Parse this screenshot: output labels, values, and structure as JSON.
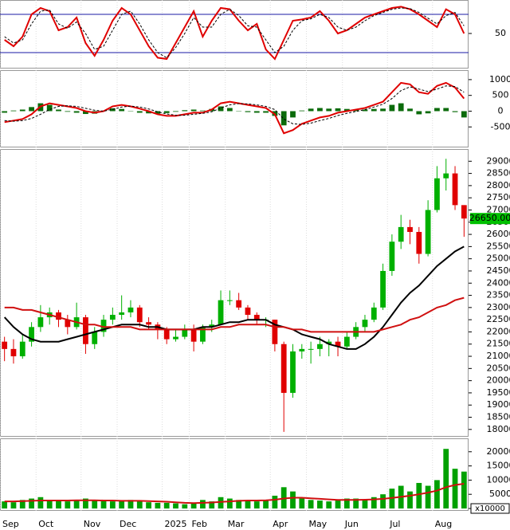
{
  "chart_data": [
    {
      "type": "line",
      "ylim": [
        0,
        100
      ],
      "yticks": [
        50
      ],
      "hlines": [
        20,
        80
      ],
      "hline_color": "#1a1aa6",
      "series": [
        {
          "name": "%K",
          "color": "#e00000",
          "values": [
            40,
            30,
            45,
            80,
            90,
            85,
            55,
            60,
            75,
            35,
            15,
            40,
            70,
            90,
            80,
            55,
            30,
            12,
            10,
            35,
            60,
            85,
            45,
            70,
            90,
            88,
            70,
            55,
            65,
            25,
            10,
            40,
            70,
            72,
            75,
            85,
            70,
            50,
            55,
            65,
            75,
            80,
            85,
            90,
            92,
            88,
            80,
            70,
            60,
            88,
            80,
            50
          ]
        },
        {
          "name": "%D",
          "color": "#000000",
          "dash": true,
          "values": [
            45,
            35,
            40,
            65,
            85,
            87,
            65,
            58,
            68,
            50,
            25,
            30,
            55,
            80,
            85,
            65,
            40,
            20,
            12,
            28,
            50,
            75,
            60,
            60,
            80,
            88,
            78,
            62,
            60,
            40,
            20,
            30,
            55,
            70,
            73,
            80,
            75,
            60,
            55,
            60,
            70,
            78,
            83,
            88,
            90,
            89,
            83,
            74,
            65,
            78,
            83,
            62
          ]
        }
      ]
    },
    {
      "type": "line",
      "ylim": [
        -1100,
        1250
      ],
      "yticks": [
        -500,
        0,
        500,
        1000
      ],
      "series": [
        {
          "name": "Histogram",
          "kind": "bar",
          "color": "#0b6b0b",
          "values": [
            -50,
            20,
            50,
            130,
            250,
            200,
            50,
            -20,
            -50,
            -90,
            -80,
            0,
            90,
            70,
            -10,
            -50,
            -70,
            -80,
            -60,
            -20,
            30,
            50,
            20,
            70,
            150,
            100,
            10,
            -30,
            -50,
            -50,
            -150,
            -450,
            -200,
            20,
            80,
            100,
            80,
            90,
            70,
            60,
            50,
            70,
            80,
            200,
            250,
            80,
            -100,
            -70,
            100,
            100,
            -30,
            -200
          ]
        },
        {
          "name": "MACD",
          "color": "#e00000",
          "values": [
            -350,
            -300,
            -250,
            -100,
            150,
            250,
            200,
            150,
            100,
            0,
            -50,
            0,
            150,
            200,
            150,
            80,
            0,
            -100,
            -150,
            -150,
            -100,
            -50,
            -50,
            50,
            250,
            300,
            250,
            200,
            150,
            100,
            -100,
            -700,
            -600,
            -400,
            -300,
            -200,
            -150,
            -50,
            0,
            50,
            100,
            200,
            300,
            600,
            900,
            850,
            600,
            550,
            800,
            900,
            750,
            400
          ]
        },
        {
          "name": "Signal",
          "color": "#000000",
          "dash": true,
          "values": [
            -300,
            -320,
            -300,
            -230,
            -100,
            50,
            150,
            170,
            150,
            90,
            30,
            0,
            60,
            130,
            160,
            130,
            70,
            -20,
            -90,
            -130,
            -130,
            -100,
            -70,
            -20,
            100,
            200,
            240,
            230,
            200,
            150,
            50,
            -250,
            -400,
            -420,
            -380,
            -300,
            -230,
            -140,
            -70,
            -10,
            50,
            130,
            220,
            400,
            650,
            770,
            700,
            620,
            700,
            800,
            780,
            600
          ]
        }
      ]
    },
    {
      "type": "candlestick",
      "ylim": [
        17700,
        29500
      ],
      "yticks": [
        18000,
        18500,
        19000,
        19500,
        20000,
        20500,
        21000,
        21500,
        22000,
        22500,
        23000,
        23500,
        24000,
        24500,
        25000,
        25500,
        26000,
        26500,
        27000,
        27500,
        28000,
        28500,
        29000
      ],
      "up_color": "#00b000",
      "down_color": "#e00000",
      "last_price": {
        "value": 26650,
        "label": "26650.00"
      },
      "last_price_color": "#00c000",
      "candles": [
        [
          21600,
          21800,
          20800,
          21300
        ],
        [
          21300,
          21700,
          20700,
          21000
        ],
        [
          21000,
          21900,
          20900,
          21600
        ],
        [
          21600,
          22400,
          21400,
          22200
        ],
        [
          22200,
          23100,
          22000,
          22600
        ],
        [
          22600,
          23000,
          22300,
          22800
        ],
        [
          22800,
          22900,
          22200,
          22500
        ],
        [
          22500,
          22700,
          21900,
          22200
        ],
        [
          22200,
          23200,
          22100,
          22600
        ],
        [
          22600,
          22700,
          21100,
          21500
        ],
        [
          21500,
          22200,
          21300,
          22000
        ],
        [
          22000,
          22700,
          21800,
          22500
        ],
        [
          22500,
          23000,
          22300,
          22700
        ],
        [
          22700,
          23500,
          22500,
          22800
        ],
        [
          22800,
          23300,
          22600,
          23000
        ],
        [
          23000,
          23100,
          22200,
          22400
        ],
        [
          22400,
          22600,
          22100,
          22300
        ],
        [
          22300,
          22400,
          21700,
          22100
        ],
        [
          22100,
          22200,
          21500,
          21700
        ],
        [
          21700,
          22100,
          21600,
          21800
        ],
        [
          21800,
          22300,
          21700,
          22100
        ],
        [
          22100,
          22300,
          21200,
          21600
        ],
        [
          21600,
          22300,
          21500,
          22200
        ],
        [
          22200,
          22500,
          22000,
          22300
        ],
        [
          22300,
          23700,
          22300,
          23300
        ],
        [
          23300,
          23700,
          23100,
          23300
        ],
        [
          23300,
          23600,
          22900,
          23000
        ],
        [
          23000,
          23100,
          22500,
          22700
        ],
        [
          22700,
          22800,
          22300,
          22500
        ],
        [
          22500,
          22600,
          22200,
          22500
        ],
        [
          22500,
          22500,
          21200,
          21500
        ],
        [
          21500,
          21600,
          17900,
          19500
        ],
        [
          19500,
          21500,
          19300,
          21200
        ],
        [
          21200,
          21500,
          20900,
          21300
        ],
        [
          21300,
          21600,
          20700,
          21300
        ],
        [
          21300,
          21800,
          21000,
          21500
        ],
        [
          21500,
          21700,
          21000,
          21600
        ],
        [
          21600,
          21800,
          21000,
          21400
        ],
        [
          21400,
          22000,
          21300,
          21800
        ],
        [
          21800,
          22400,
          21700,
          22200
        ],
        [
          22200,
          22700,
          22000,
          22500
        ],
        [
          22500,
          23200,
          22400,
          23000
        ],
        [
          23000,
          24800,
          22900,
          24500
        ],
        [
          24500,
          26000,
          24300,
          25700
        ],
        [
          25700,
          26800,
          25400,
          26300
        ],
        [
          26300,
          26600,
          25600,
          26100
        ],
        [
          26100,
          26300,
          24800,
          25200
        ],
        [
          25200,
          27400,
          25100,
          27000
        ],
        [
          27000,
          28800,
          26900,
          28300
        ],
        [
          28300,
          29100,
          27800,
          28500
        ],
        [
          28500,
          28800,
          27000,
          27200
        ],
        [
          27200,
          27200,
          25900,
          26650
        ]
      ],
      "series": [
        {
          "name": "MA50",
          "color": "#000000",
          "values": [
            22600,
            22200,
            21900,
            21700,
            21600,
            21600,
            21600,
            21700,
            21800,
            21900,
            22000,
            22100,
            22200,
            22300,
            22300,
            22300,
            22200,
            22200,
            22100,
            22100,
            22100,
            22100,
            22200,
            22200,
            22300,
            22400,
            22400,
            22500,
            22500,
            22500,
            22300,
            22200,
            22100,
            21900,
            21800,
            21700,
            21500,
            21400,
            21300,
            21300,
            21500,
            21800,
            22200,
            22700,
            23200,
            23600,
            23900,
            24300,
            24700,
            25000,
            25300,
            25500
          ]
        },
        {
          "name": "MA200",
          "color": "#d01010",
          "values": [
            23000,
            23000,
            22900,
            22900,
            22800,
            22700,
            22600,
            22500,
            22400,
            22300,
            22300,
            22200,
            22200,
            22200,
            22200,
            22100,
            22100,
            22100,
            22100,
            22100,
            22100,
            22100,
            22100,
            22100,
            22200,
            22200,
            22300,
            22300,
            22300,
            22300,
            22200,
            22200,
            22100,
            22100,
            22000,
            22000,
            22000,
            22000,
            22000,
            22000,
            22000,
            22000,
            22100,
            22200,
            22300,
            22500,
            22600,
            22800,
            23000,
            23100,
            23300,
            23400
          ]
        }
      ]
    },
    {
      "type": "bar",
      "ylim": [
        0,
        25000
      ],
      "yticks": [
        0,
        5000,
        10000,
        15000,
        20000
      ],
      "y_unit": "x10000",
      "categories": [
        "Sep",
        null,
        null,
        null,
        "Oct",
        null,
        null,
        null,
        null,
        "Nov",
        null,
        null,
        null,
        "Dec",
        null,
        null,
        null,
        null,
        "2025",
        null,
        null,
        "Feb",
        null,
        null,
        null,
        "Mar",
        null,
        null,
        null,
        null,
        "Apr",
        null,
        null,
        null,
        "May",
        null,
        null,
        null,
        "Jun",
        null,
        null,
        null,
        null,
        "Jul",
        null,
        null,
        null,
        null,
        "Aug",
        null,
        null,
        null
      ],
      "series": [
        {
          "name": "Volume",
          "kind": "bar",
          "color": "#00a000",
          "values": [
            2500,
            2200,
            3000,
            3500,
            4000,
            3000,
            2800,
            2500,
            3000,
            3500,
            2800,
            2600,
            2500,
            2800,
            3000,
            2500,
            2200,
            2000,
            2000,
            1800,
            1500,
            2000,
            3000,
            2500,
            4000,
            3500,
            3000,
            2800,
            2500,
            3000,
            4500,
            7500,
            6000,
            3500,
            3000,
            2800,
            2500,
            3000,
            3500,
            3500,
            3000,
            4000,
            5000,
            7000,
            8000,
            6000,
            9000,
            8000,
            10000,
            21000,
            14000,
            13000
          ]
        },
        {
          "name": "Volume MA",
          "color": "#d01010",
          "values": [
            2500,
            2500,
            2600,
            2700,
            2800,
            2800,
            2800,
            2800,
            2900,
            2900,
            2900,
            2800,
            2800,
            2700,
            2700,
            2700,
            2600,
            2500,
            2400,
            2200,
            2000,
            1900,
            2000,
            2100,
            2300,
            2500,
            2700,
            2800,
            2800,
            2900,
            3100,
            3500,
            3800,
            3800,
            3600,
            3400,
            3200,
            3000,
            3000,
            3000,
            3100,
            3200,
            3400,
            3700,
            4100,
            4500,
            5000,
            5600,
            6300,
            7500,
            8300,
            8700
          ]
        }
      ]
    }
  ]
}
